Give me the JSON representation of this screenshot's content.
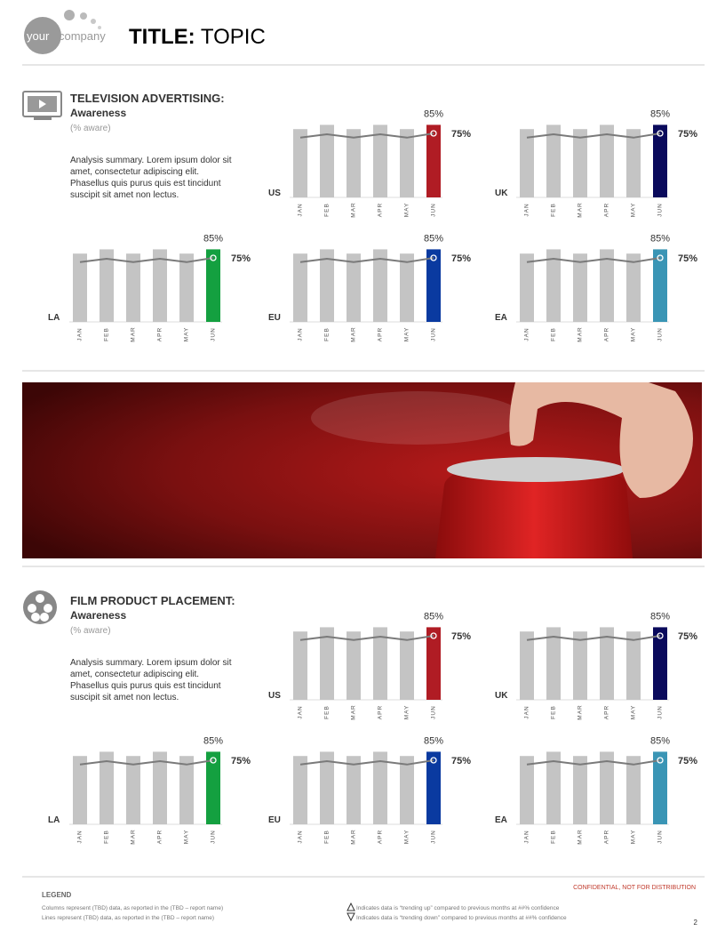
{
  "header": {
    "logo_left": "your",
    "logo_right": "company",
    "title_bold": "TITLE:",
    "title_rest": "TOPIC"
  },
  "sections": [
    {
      "title": "TELEVISION ADVERTISING:",
      "subtitle": "Awareness",
      "note": "(% aware)",
      "summary": "Analysis summary. Lorem ipsum dolor sit amet, consectetur adipiscing elit. Phasellus quis purus quis est tincidunt suscipit sit amet non lectus.",
      "charts": [
        {
          "type": "bar",
          "region": "US",
          "bar_color": "#c4c4c4",
          "highlight_color": "#b01c24",
          "categories": [
            "JAN",
            "FEB",
            "MAR",
            "APR",
            "MAY",
            "JUN"
          ],
          "bars": {
            "values": [
              80,
              85,
              80,
              85,
              80,
              85
            ],
            "value_labels": [
              null,
              null,
              null,
              null,
              null,
              "85%"
            ]
          },
          "line": {
            "color": "#7a7a7a",
            "values": [
              70,
              74,
              70,
              74,
              70,
              75
            ],
            "value_labels": [
              null,
              null,
              null,
              null,
              null,
              "75%"
            ]
          }
        },
        {
          "type": "bar",
          "region": "UK",
          "bar_color": "#c4c4c4",
          "highlight_color": "#0a0a5c",
          "categories": [
            "JAN",
            "FEB",
            "MAR",
            "APR",
            "MAY",
            "JUN"
          ],
          "bars": {
            "values": [
              80,
              85,
              80,
              85,
              80,
              85
            ],
            "value_labels": [
              null,
              null,
              null,
              null,
              null,
              "85%"
            ]
          },
          "line": {
            "color": "#7a7a7a",
            "values": [
              70,
              74,
              70,
              74,
              70,
              75
            ],
            "value_labels": [
              null,
              null,
              null,
              null,
              null,
              "75%"
            ]
          }
        },
        {
          "type": "bar",
          "region": "LA",
          "bar_color": "#c4c4c4",
          "highlight_color": "#14a040",
          "categories": [
            "JAN",
            "FEB",
            "MAR",
            "APR",
            "MAY",
            "JUN"
          ],
          "bars": {
            "values": [
              80,
              85,
              80,
              85,
              80,
              85
            ],
            "value_labels": [
              null,
              null,
              null,
              null,
              null,
              "85%"
            ]
          },
          "line": {
            "color": "#7a7a7a",
            "values": [
              70,
              74,
              70,
              74,
              70,
              75
            ],
            "value_labels": [
              null,
              null,
              null,
              null,
              null,
              "75%"
            ]
          }
        },
        {
          "type": "bar",
          "region": "EU",
          "bar_color": "#c4c4c4",
          "highlight_color": "#0a3aa0",
          "categories": [
            "JAN",
            "FEB",
            "MAR",
            "APR",
            "MAY",
            "JUN"
          ],
          "bars": {
            "values": [
              80,
              85,
              80,
              85,
              80,
              85
            ],
            "value_labels": [
              null,
              null,
              null,
              null,
              null,
              "85%"
            ]
          },
          "line": {
            "color": "#7a7a7a",
            "values": [
              70,
              74,
              70,
              74,
              70,
              75
            ],
            "value_labels": [
              null,
              null,
              null,
              null,
              null,
              "75%"
            ]
          }
        },
        {
          "type": "bar",
          "region": "EA",
          "bar_color": "#c4c4c4",
          "highlight_color": "#3a95b5",
          "categories": [
            "JAN",
            "FEB",
            "MAR",
            "APR",
            "MAY",
            "JUN"
          ],
          "bars": {
            "values": [
              80,
              85,
              80,
              85,
              80,
              85
            ],
            "value_labels": [
              null,
              null,
              null,
              null,
              null,
              "85%"
            ]
          },
          "line": {
            "color": "#7a7a7a",
            "values": [
              70,
              74,
              70,
              74,
              70,
              75
            ],
            "value_labels": [
              null,
              null,
              null,
              null,
              null,
              "75%"
            ]
          }
        }
      ]
    },
    {
      "title": "FILM PRODUCT PLACEMENT:",
      "subtitle": "Awareness",
      "note": "(% aware)",
      "summary": "Analysis summary. Lorem ipsum dolor sit amet, consectetur adipiscing elit. Phasellus quis purus quis est tincidunt suscipit sit amet non lectus.",
      "charts": [
        {
          "type": "bar",
          "region": "US",
          "bar_color": "#c4c4c4",
          "highlight_color": "#b01c24",
          "categories": [
            "JAN",
            "FEB",
            "MAR",
            "APR",
            "MAY",
            "JUN"
          ],
          "bars": {
            "values": [
              80,
              85,
              80,
              85,
              80,
              85
            ],
            "value_labels": [
              null,
              null,
              null,
              null,
              null,
              "85%"
            ]
          },
          "line": {
            "color": "#7a7a7a",
            "values": [
              70,
              74,
              70,
              74,
              70,
              75
            ],
            "value_labels": [
              null,
              null,
              null,
              null,
              null,
              "75%"
            ]
          }
        },
        {
          "type": "bar",
          "region": "UK",
          "bar_color": "#c4c4c4",
          "highlight_color": "#0a0a5c",
          "categories": [
            "JAN",
            "FEB",
            "MAR",
            "APR",
            "MAY",
            "JUN"
          ],
          "bars": {
            "values": [
              80,
              85,
              80,
              85,
              80,
              85
            ],
            "value_labels": [
              null,
              null,
              null,
              null,
              null,
              "85%"
            ]
          },
          "line": {
            "color": "#7a7a7a",
            "values": [
              70,
              74,
              70,
              74,
              70,
              75
            ],
            "value_labels": [
              null,
              null,
              null,
              null,
              null,
              "75%"
            ]
          }
        },
        {
          "type": "bar",
          "region": "LA",
          "bar_color": "#c4c4c4",
          "highlight_color": "#14a040",
          "categories": [
            "JAN",
            "FEB",
            "MAR",
            "APR",
            "MAY",
            "JUN"
          ],
          "bars": {
            "values": [
              80,
              85,
              80,
              85,
              80,
              85
            ],
            "value_labels": [
              null,
              null,
              null,
              null,
              null,
              "85%"
            ]
          },
          "line": {
            "color": "#7a7a7a",
            "values": [
              70,
              74,
              70,
              74,
              70,
              75
            ],
            "value_labels": [
              null,
              null,
              null,
              null,
              null,
              "75%"
            ]
          }
        },
        {
          "type": "bar",
          "region": "EU",
          "bar_color": "#c4c4c4",
          "highlight_color": "#0a3aa0",
          "categories": [
            "JAN",
            "FEB",
            "MAR",
            "APR",
            "MAY",
            "JUN"
          ],
          "bars": {
            "values": [
              80,
              85,
              80,
              85,
              80,
              85
            ],
            "value_labels": [
              null,
              null,
              null,
              null,
              null,
              "85%"
            ]
          },
          "line": {
            "color": "#7a7a7a",
            "values": [
              70,
              74,
              70,
              74,
              70,
              75
            ],
            "value_labels": [
              null,
              null,
              null,
              null,
              null,
              "75%"
            ]
          }
        },
        {
          "type": "bar",
          "region": "EA",
          "bar_color": "#c4c4c4",
          "highlight_color": "#3a95b5",
          "categories": [
            "JAN",
            "FEB",
            "MAR",
            "APR",
            "MAY",
            "JUN"
          ],
          "bars": {
            "values": [
              80,
              85,
              80,
              85,
              80,
              85
            ],
            "value_labels": [
              null,
              null,
              null,
              null,
              null,
              "85%"
            ]
          },
          "line": {
            "color": "#7a7a7a",
            "values": [
              70,
              74,
              70,
              74,
              70,
              75
            ],
            "value_labels": [
              null,
              null,
              null,
              null,
              null,
              "75%"
            ]
          }
        }
      ]
    }
  ],
  "footer": {
    "legend_title": "LEGEND",
    "columns_note": "Columns represent (TBD) data, as reported in the (TBD – report name)",
    "lines_note": "Lines represent (TBD) data, as reported in the (TBD – report name)",
    "trend_up": "Indicates data is “trending up” compared to previous months at ##% confidence",
    "trend_down": "Indicates data is “trending down” compared to previous months at ##% confidence",
    "confidential": "CONFIDENTIAL, NOT FOR DISTRIBUTION",
    "page_number": "2"
  }
}
